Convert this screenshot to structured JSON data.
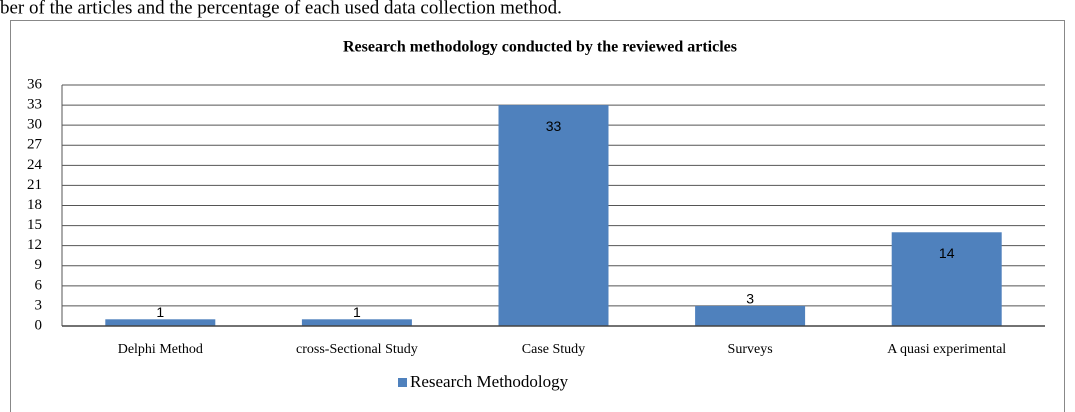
{
  "caption": "ber of the articles and the percentage of each used data collection method.",
  "chart_data": {
    "type": "bar",
    "title": "Research methodology  conducted by the reviewed articles",
    "categories": [
      "Delphi Method",
      "cross-Sectional Study",
      "Case Study",
      "Surveys",
      "A quasi experimental"
    ],
    "series": [
      {
        "name": "Research Methodology",
        "color": "#4f81bd",
        "values": [
          1,
          1,
          33,
          3,
          14
        ]
      }
    ],
    "ylim": [
      0,
      36
    ],
    "yticks": [
      0,
      3,
      6,
      9,
      12,
      15,
      18,
      21,
      24,
      27,
      30,
      33,
      36
    ],
    "grid": true,
    "legend": "bottom"
  }
}
